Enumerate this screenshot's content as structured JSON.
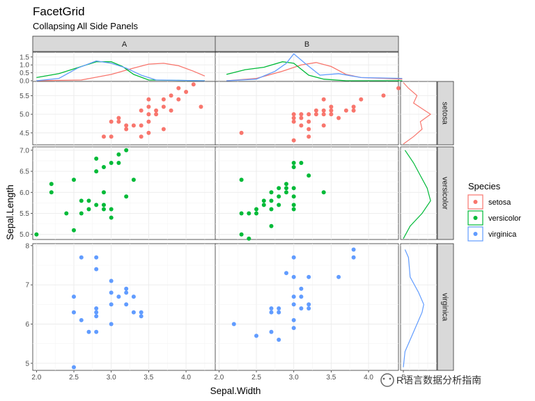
{
  "chart_data": {
    "type": "scatter",
    "title": "FacetGrid",
    "subtitle": "Collapsing All Side Panels",
    "xlabel": "Sepal.Width",
    "ylabel": "Sepal.Length",
    "columns": [
      "A",
      "B"
    ],
    "rows": [
      "setosa",
      "versicolor",
      "virginica"
    ],
    "xlim": [
      1.95,
      4.4
    ],
    "x_ticks": [
      "2.0",
      "2.5",
      "3.0",
      "3.5",
      "4.0"
    ],
    "row_ylims": {
      "setosa": [
        4.18,
        5.88
      ],
      "versicolor": [
        4.88,
        7.08
      ],
      "virginica": [
        4.82,
        8.05
      ]
    },
    "row_y_ticks": {
      "setosa": [
        "4.5",
        "5.0",
        "5.5"
      ],
      "versicolor": [
        "5.0",
        "5.5",
        "6.0",
        "6.5",
        "7.0"
      ],
      "virginica": [
        "5",
        "6",
        "7",
        "8"
      ]
    },
    "top_ylim": [
      0,
      1.8
    ],
    "top_y_ticks": [
      "0.0",
      "0.5",
      "1.0",
      "1.5"
    ],
    "side_x_tick": "5",
    "legend": {
      "title": "Species",
      "entries": [
        "setosa",
        "versicolor",
        "virginica"
      ],
      "colors": [
        "#F8766D",
        "#00BA38",
        "#619CFF"
      ]
    },
    "points": {
      "setosa": {
        "A": [
          [
            2.9,
            4.4
          ],
          [
            3.0,
            4.4
          ],
          [
            3.0,
            4.8
          ],
          [
            3.1,
            4.8
          ],
          [
            3.1,
            4.9
          ],
          [
            3.2,
            4.7
          ],
          [
            3.2,
            4.6
          ],
          [
            3.3,
            4.7
          ],
          [
            3.4,
            4.4
          ],
          [
            3.5,
            4.5
          ],
          [
            3.4,
            4.7
          ],
          [
            3.5,
            4.8
          ],
          [
            3.5,
            5.0
          ],
          [
            3.5,
            5.2
          ],
          [
            3.5,
            5.4
          ],
          [
            3.6,
            5.1
          ],
          [
            3.6,
            5.0
          ],
          [
            3.7,
            5.2
          ],
          [
            3.7,
            5.4
          ],
          [
            3.7,
            4.6
          ],
          [
            3.8,
            5.1
          ],
          [
            3.9,
            5.4
          ],
          [
            3.9,
            5.7
          ],
          [
            4.0,
            5.6
          ],
          [
            3.8,
            5.5
          ],
          [
            4.1,
            5.8
          ],
          [
            4.2,
            5.2
          ],
          [
            3.4,
            5.1
          ]
        ],
        "B": [
          [
            2.3,
            4.5
          ],
          [
            3.0,
            4.3
          ],
          [
            3.0,
            4.8
          ],
          [
            3.0,
            4.9
          ],
          [
            3.0,
            5.0
          ],
          [
            3.1,
            4.7
          ],
          [
            3.1,
            4.9
          ],
          [
            3.1,
            5.0
          ],
          [
            3.2,
            4.6
          ],
          [
            3.2,
            4.8
          ],
          [
            3.2,
            5.0
          ],
          [
            3.2,
            4.4
          ],
          [
            3.3,
            5.1
          ],
          [
            3.4,
            4.7
          ],
          [
            3.4,
            5.0
          ],
          [
            3.4,
            5.1
          ],
          [
            3.4,
            5.4
          ],
          [
            3.5,
            5.0
          ],
          [
            3.5,
            5.1
          ],
          [
            3.5,
            5.2
          ],
          [
            3.6,
            4.9
          ],
          [
            3.7,
            5.1
          ],
          [
            3.8,
            5.1
          ],
          [
            3.8,
            5.2
          ],
          [
            3.9,
            5.4
          ],
          [
            4.2,
            5.5
          ],
          [
            4.4,
            5.7
          ],
          [
            3.3,
            5.0
          ]
        ]
      },
      "versicolor": {
        "A": [
          [
            2.0,
            5.0
          ],
          [
            2.2,
            6.2
          ],
          [
            2.2,
            6.0
          ],
          [
            2.4,
            5.5
          ],
          [
            2.5,
            6.3
          ],
          [
            2.5,
            5.1
          ],
          [
            2.6,
            5.5
          ],
          [
            2.6,
            5.8
          ],
          [
            2.7,
            5.8
          ],
          [
            2.7,
            5.6
          ],
          [
            2.8,
            6.8
          ],
          [
            2.8,
            6.5
          ],
          [
            2.8,
            5.7
          ],
          [
            2.9,
            6.6
          ],
          [
            2.9,
            6.0
          ],
          [
            2.9,
            5.7
          ],
          [
            2.9,
            5.6
          ],
          [
            3.0,
            5.6
          ],
          [
            3.0,
            5.4
          ],
          [
            3.0,
            6.7
          ],
          [
            3.1,
            6.7
          ],
          [
            3.1,
            6.9
          ],
          [
            3.2,
            7.0
          ],
          [
            3.2,
            5.9
          ],
          [
            3.3,
            6.3
          ]
        ],
        "B": [
          [
            2.3,
            5.0
          ],
          [
            2.3,
            5.5
          ],
          [
            2.3,
            6.3
          ],
          [
            2.4,
            5.5
          ],
          [
            2.4,
            4.9
          ],
          [
            2.5,
            5.5
          ],
          [
            2.5,
            5.6
          ],
          [
            2.6,
            5.7
          ],
          [
            2.6,
            5.8
          ],
          [
            2.7,
            5.8
          ],
          [
            2.7,
            6.0
          ],
          [
            2.7,
            5.2
          ],
          [
            2.8,
            6.1
          ],
          [
            2.8,
            5.7
          ],
          [
            2.8,
            5.9
          ],
          [
            2.9,
            6.1
          ],
          [
            2.9,
            6.2
          ],
          [
            2.9,
            6.0
          ],
          [
            3.0,
            6.1
          ],
          [
            3.0,
            5.9
          ],
          [
            3.0,
            6.6
          ],
          [
            3.0,
            6.7
          ],
          [
            3.0,
            5.7
          ],
          [
            3.0,
            5.6
          ],
          [
            3.1,
            6.7
          ],
          [
            3.2,
            6.4
          ],
          [
            3.4,
            6.0
          ],
          [
            2.7,
            5.6
          ]
        ]
      },
      "virginica": {
        "A": [
          [
            2.5,
            4.9
          ],
          [
            2.5,
            6.3
          ],
          [
            2.5,
            6.7
          ],
          [
            2.6,
            6.1
          ],
          [
            2.6,
            7.7
          ],
          [
            2.7,
            5.8
          ],
          [
            2.8,
            5.8
          ],
          [
            2.8,
            6.2
          ],
          [
            2.8,
            6.3
          ],
          [
            2.8,
            6.4
          ],
          [
            2.8,
            7.4
          ],
          [
            2.8,
            7.7
          ],
          [
            3.0,
            6.0
          ],
          [
            3.0,
            6.5
          ],
          [
            3.0,
            6.8
          ],
          [
            3.0,
            7.1
          ],
          [
            3.1,
            6.7
          ],
          [
            3.2,
            6.8
          ],
          [
            3.2,
            6.9
          ],
          [
            3.2,
            6.5
          ],
          [
            3.3,
            6.3
          ],
          [
            3.3,
            6.7
          ],
          [
            3.4,
            6.2
          ],
          [
            3.4,
            6.3
          ]
        ],
        "B": [
          [
            2.2,
            6.0
          ],
          [
            2.5,
            5.7
          ],
          [
            2.7,
            5.8
          ],
          [
            2.7,
            6.3
          ],
          [
            2.7,
            6.4
          ],
          [
            2.8,
            5.6
          ],
          [
            2.8,
            6.3
          ],
          [
            2.8,
            6.4
          ],
          [
            2.9,
            7.3
          ],
          [
            3.0,
            5.9
          ],
          [
            3.0,
            6.1
          ],
          [
            3.0,
            6.5
          ],
          [
            3.0,
            6.7
          ],
          [
            3.0,
            7.2
          ],
          [
            3.0,
            7.7
          ],
          [
            3.1,
            6.9
          ],
          [
            3.1,
            6.4
          ],
          [
            3.2,
            6.4
          ],
          [
            3.2,
            6.5
          ],
          [
            3.2,
            7.2
          ],
          [
            3.6,
            7.2
          ],
          [
            3.8,
            7.7
          ],
          [
            3.8,
            7.9
          ],
          [
            3.1,
            6.7
          ]
        ]
      }
    },
    "top_density": {
      "A": {
        "setosa": [
          [
            2.0,
            0.0
          ],
          [
            2.6,
            0.05
          ],
          [
            3.0,
            0.4
          ],
          [
            3.3,
            0.8
          ],
          [
            3.5,
            1.05
          ],
          [
            3.7,
            1.1
          ],
          [
            3.9,
            0.95
          ],
          [
            4.1,
            0.6
          ],
          [
            4.25,
            0.3
          ]
        ],
        "versicolor": [
          [
            2.0,
            0.2
          ],
          [
            2.3,
            0.45
          ],
          [
            2.6,
            0.9
          ],
          [
            2.8,
            1.2
          ],
          [
            3.0,
            1.2
          ],
          [
            3.15,
            0.9
          ],
          [
            3.3,
            0.4
          ],
          [
            3.5,
            0.05
          ],
          [
            4.25,
            0.0
          ]
        ],
        "virginica": [
          [
            2.0,
            0.0
          ],
          [
            2.3,
            0.15
          ],
          [
            2.55,
            0.8
          ],
          [
            2.8,
            1.25
          ],
          [
            3.0,
            1.1
          ],
          [
            3.2,
            0.8
          ],
          [
            3.4,
            0.35
          ],
          [
            3.6,
            0.05
          ],
          [
            4.25,
            0.0
          ]
        ]
      },
      "B": {
        "setosa": [
          [
            2.1,
            0.0
          ],
          [
            2.5,
            0.15
          ],
          [
            2.85,
            0.6
          ],
          [
            3.1,
            1.0
          ],
          [
            3.3,
            1.15
          ],
          [
            3.5,
            0.9
          ],
          [
            3.7,
            0.4
          ],
          [
            3.9,
            0.2
          ],
          [
            4.2,
            0.15
          ],
          [
            4.45,
            0.1
          ]
        ],
        "versicolor": [
          [
            2.1,
            0.4
          ],
          [
            2.35,
            0.7
          ],
          [
            2.6,
            0.85
          ],
          [
            2.85,
            1.2
          ],
          [
            3.0,
            1.1
          ],
          [
            3.2,
            0.35
          ],
          [
            3.4,
            0.1
          ],
          [
            3.7,
            0.0
          ],
          [
            4.45,
            0.0
          ]
        ],
        "virginica": [
          [
            2.1,
            0.0
          ],
          [
            2.5,
            0.1
          ],
          [
            2.75,
            0.6
          ],
          [
            2.9,
            1.1
          ],
          [
            3.0,
            1.7
          ],
          [
            3.15,
            1.1
          ],
          [
            3.35,
            0.35
          ],
          [
            3.6,
            0.45
          ],
          [
            3.9,
            0.2
          ],
          [
            4.45,
            0.15
          ]
        ]
      }
    },
    "side_density": {
      "setosa": [
        [
          4.2,
          0.0
        ],
        [
          4.4,
          0.3
        ],
        [
          4.6,
          0.55
        ],
        [
          4.8,
          0.5
        ],
        [
          5.0,
          0.8
        ],
        [
          5.15,
          0.55
        ],
        [
          5.3,
          0.3
        ],
        [
          5.5,
          0.4
        ],
        [
          5.7,
          0.15
        ],
        [
          5.85,
          0.0
        ]
      ],
      "versicolor": [
        [
          4.9,
          0.0
        ],
        [
          5.2,
          0.2
        ],
        [
          5.5,
          0.55
        ],
        [
          5.8,
          0.8
        ],
        [
          6.1,
          0.7
        ],
        [
          6.4,
          0.5
        ],
        [
          6.7,
          0.3
        ],
        [
          7.0,
          0.05
        ]
      ],
      "virginica": [
        [
          4.9,
          0.0
        ],
        [
          5.3,
          0.05
        ],
        [
          5.8,
          0.3
        ],
        [
          6.3,
          0.55
        ],
        [
          6.5,
          0.6
        ],
        [
          6.8,
          0.45
        ],
        [
          7.2,
          0.2
        ],
        [
          7.7,
          0.15
        ],
        [
          7.9,
          0.05
        ]
      ]
    }
  },
  "watermark": "R语言数据分析指南"
}
